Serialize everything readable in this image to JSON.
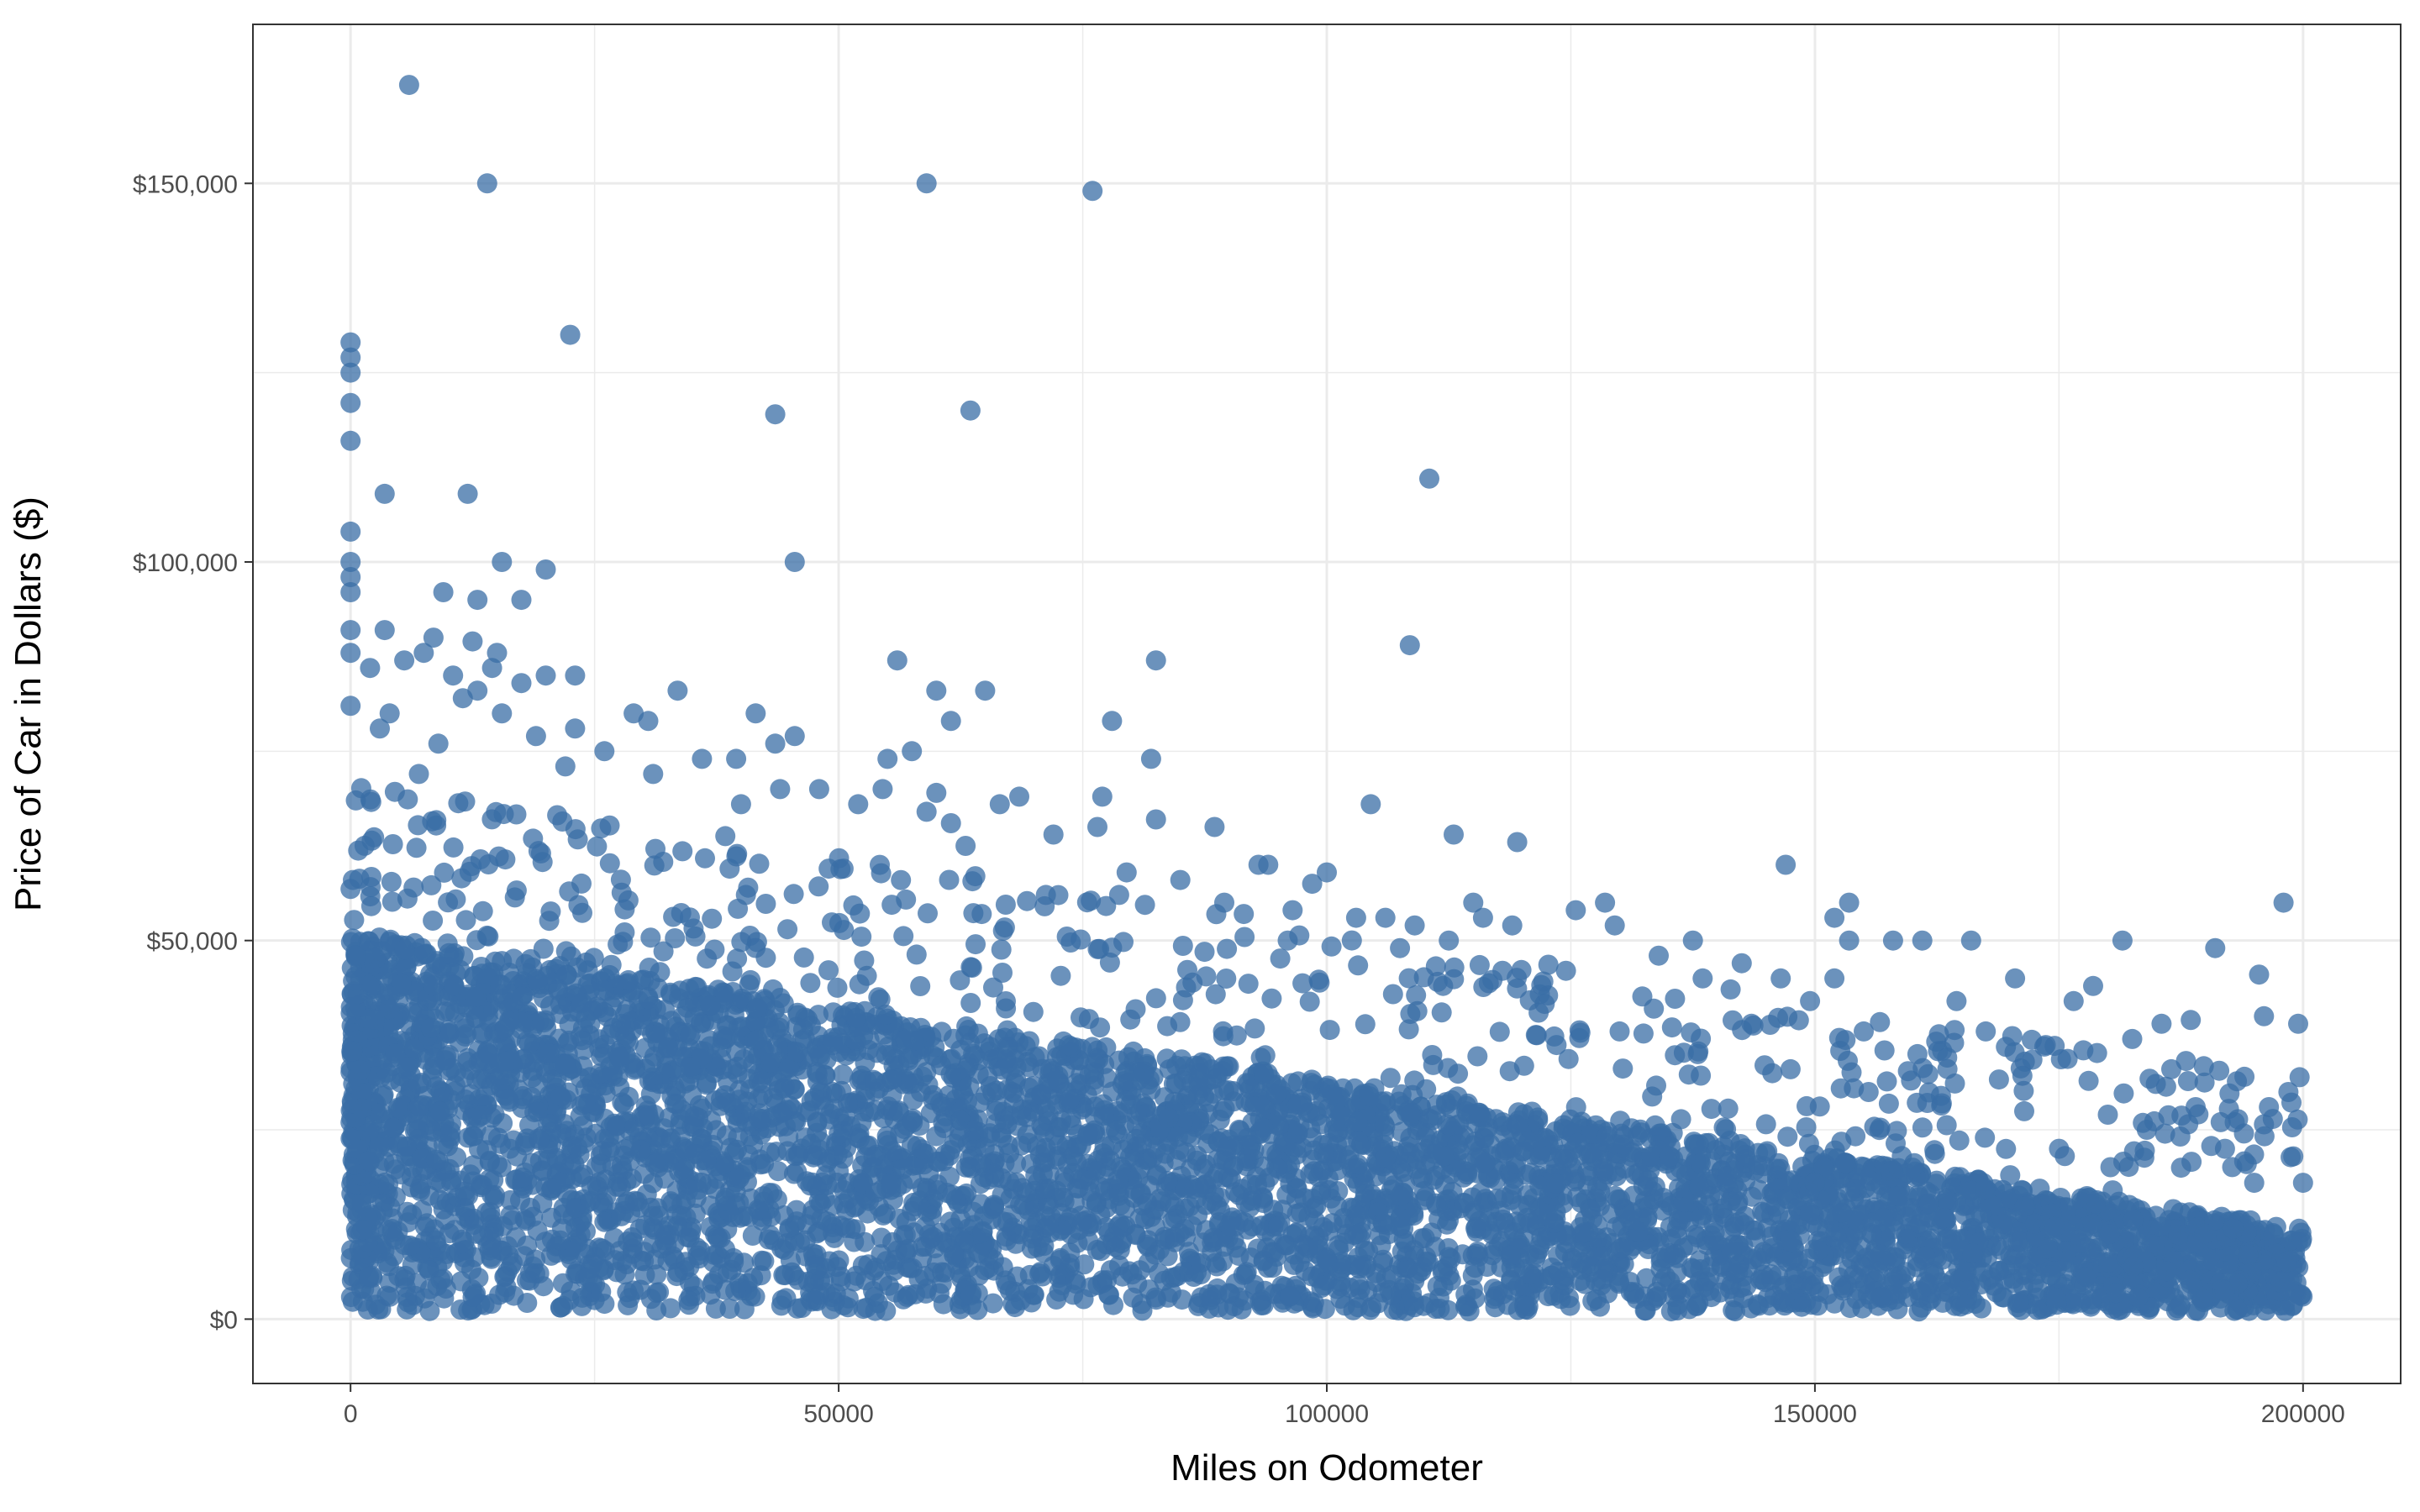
{
  "chart_data": {
    "type": "scatter",
    "xlabel": "Miles on Odometer",
    "ylabel": "Price of Car in Dollars ($)",
    "xlim": [
      -10000,
      210000
    ],
    "ylim": [
      -8500,
      171000
    ],
    "x_ticks": [
      0,
      50000,
      100000,
      150000,
      200000
    ],
    "x_tick_labels": [
      "0",
      "50000",
      "100000",
      "150000",
      "200000"
    ],
    "y_ticks": [
      0,
      50000,
      100000,
      150000
    ],
    "y_tick_labels": [
      "$0",
      "$50,000",
      "$100,000",
      "$150,000"
    ],
    "grid": true,
    "point_color": "#3a6ea5",
    "point_opacity": 0.75,
    "dense_band": {
      "x_range": [
        0,
        200000
      ],
      "y_low_at_0": 1000,
      "y_high_at_0": 45000,
      "y_high_at_200000": 12000
    },
    "points": [
      [
        6000,
        163000
      ],
      [
        14000,
        150000
      ],
      [
        59000,
        150000
      ],
      [
        76000,
        149000
      ],
      [
        0,
        129000
      ],
      [
        0,
        127000
      ],
      [
        0,
        125000
      ],
      [
        0,
        121000
      ],
      [
        0,
        116000
      ],
      [
        22500,
        130000
      ],
      [
        43500,
        119500
      ],
      [
        63500,
        120000
      ],
      [
        110500,
        111000
      ],
      [
        3500,
        109000
      ],
      [
        12000,
        109000
      ],
      [
        0,
        104000
      ],
      [
        0,
        100000
      ],
      [
        0,
        98000
      ],
      [
        0,
        96000
      ],
      [
        15500,
        100000
      ],
      [
        20000,
        99000
      ],
      [
        45500,
        100000
      ],
      [
        108500,
        89000
      ],
      [
        9500,
        96000
      ],
      [
        13000,
        95000
      ],
      [
        17500,
        95000
      ],
      [
        3500,
        91000
      ],
      [
        0,
        91000
      ],
      [
        8500,
        90000
      ],
      [
        12500,
        89500
      ],
      [
        15000,
        88000
      ],
      [
        7500,
        88000
      ],
      [
        5500,
        87000
      ],
      [
        56000,
        87000
      ],
      [
        82500,
        87000
      ],
      [
        0,
        88000
      ],
      [
        2000,
        86000
      ],
      [
        14500,
        86000
      ],
      [
        23000,
        85000
      ],
      [
        10500,
        85000
      ],
      [
        17500,
        84000
      ],
      [
        20000,
        85000
      ],
      [
        33500,
        83000
      ],
      [
        60000,
        83000
      ],
      [
        65000,
        83000
      ],
      [
        13000,
        83000
      ],
      [
        11500,
        82000
      ],
      [
        0,
        81000
      ],
      [
        4000,
        80000
      ],
      [
        15500,
        80000
      ],
      [
        29000,
        80000
      ],
      [
        41500,
        80000
      ],
      [
        61500,
        79000
      ],
      [
        78000,
        79000
      ],
      [
        30500,
        79000
      ],
      [
        3000,
        78000
      ],
      [
        23000,
        78000
      ],
      [
        45500,
        77000
      ],
      [
        19000,
        77000
      ],
      [
        9000,
        76000
      ],
      [
        26000,
        75000
      ],
      [
        36000,
        74000
      ],
      [
        55000,
        74000
      ],
      [
        82000,
        74000
      ],
      [
        43500,
        76000
      ],
      [
        39500,
        74000
      ],
      [
        57500,
        75000
      ],
      [
        22000,
        73000
      ],
      [
        7000,
        72000
      ],
      [
        31000,
        72000
      ],
      [
        48000,
        70000
      ],
      [
        44000,
        70000
      ],
      [
        68500,
        69000
      ],
      [
        77000,
        69000
      ],
      [
        104500,
        68000
      ],
      [
        54500,
        70000
      ],
      [
        60000,
        69500
      ],
      [
        66500,
        68000
      ],
      [
        52000,
        68000
      ],
      [
        40000,
        68000
      ],
      [
        59000,
        67000
      ],
      [
        82500,
        66000
      ],
      [
        88500,
        65000
      ],
      [
        76500,
        65000
      ],
      [
        61500,
        65500
      ],
      [
        113000,
        64000
      ],
      [
        72000,
        64000
      ],
      [
        119500,
        63000
      ],
      [
        63000,
        62500
      ],
      [
        94000,
        60000
      ],
      [
        100000,
        59000
      ],
      [
        147000,
        60000
      ],
      [
        98500,
        57500
      ],
      [
        85000,
        58000
      ],
      [
        79500,
        59000
      ],
      [
        93000,
        60000
      ],
      [
        64000,
        58500
      ],
      [
        50500,
        59500
      ],
      [
        72500,
        56000
      ],
      [
        89500,
        55000
      ],
      [
        91500,
        53500
      ],
      [
        115000,
        55000
      ],
      [
        128500,
        55000
      ],
      [
        153500,
        55000
      ],
      [
        198000,
        55000
      ],
      [
        125500,
        54000
      ],
      [
        96500,
        54000
      ],
      [
        103000,
        53000
      ],
      [
        106000,
        53000
      ],
      [
        152000,
        53000
      ],
      [
        116000,
        53000
      ],
      [
        129500,
        52000
      ],
      [
        119000,
        52000
      ],
      [
        109000,
        52000
      ],
      [
        137500,
        50000
      ],
      [
        161000,
        50000
      ],
      [
        166000,
        50000
      ],
      [
        181500,
        50000
      ],
      [
        158000,
        50000
      ],
      [
        153500,
        50000
      ],
      [
        96000,
        50000
      ],
      [
        112500,
        50000
      ],
      [
        107500,
        49000
      ],
      [
        191000,
        49000
      ],
      [
        142500,
        47000
      ],
      [
        134000,
        48000
      ],
      [
        118000,
        46000
      ],
      [
        146500,
        45000
      ],
      [
        124500,
        46000
      ],
      [
        138500,
        45000
      ],
      [
        195500,
        45500
      ],
      [
        152000,
        45000
      ],
      [
        178500,
        44000
      ],
      [
        170500,
        45000
      ],
      [
        176500,
        42000
      ],
      [
        164500,
        42000
      ],
      [
        149500,
        42000
      ],
      [
        133500,
        41000
      ],
      [
        185500,
        39000
      ],
      [
        188500,
        39500
      ],
      [
        196000,
        40000
      ],
      [
        199500,
        39000
      ],
      [
        143500,
        39000
      ],
      [
        167500,
        38000
      ],
      [
        182500,
        37000
      ],
      [
        173500,
        36000
      ],
      [
        155000,
        38000
      ],
      [
        130000,
        38000
      ],
      [
        121500,
        37500
      ],
      [
        160500,
        35000
      ],
      [
        171500,
        34000
      ],
      [
        177500,
        35500
      ],
      [
        186500,
        33000
      ],
      [
        194000,
        32000
      ],
      [
        147500,
        33000
      ],
      [
        138000,
        35000
      ],
      [
        198500,
        30000
      ],
      [
        189000,
        28000
      ],
      [
        180000,
        27000
      ],
      [
        163000,
        28500
      ],
      [
        155500,
        30000
      ],
      [
        196500,
        28000
      ],
      [
        193000,
        26000
      ],
      [
        184000,
        25000
      ],
      [
        175000,
        22500
      ],
      [
        192000,
        22500
      ],
      [
        199000,
        21500
      ],
      [
        187500,
        20000
      ],
      [
        170000,
        19000
      ],
      [
        160000,
        20000
      ],
      [
        195000,
        18000
      ],
      [
        200000,
        18000
      ],
      [
        150000,
        18000
      ],
      [
        180500,
        17000
      ]
    ]
  }
}
